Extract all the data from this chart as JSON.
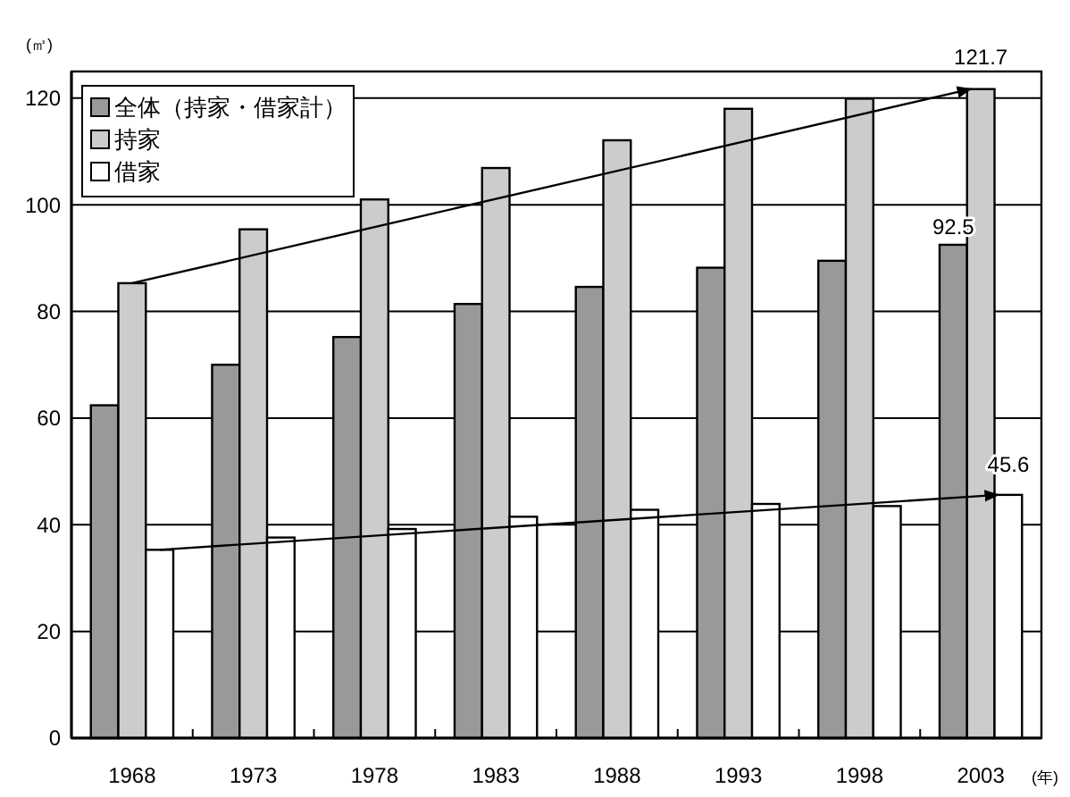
{
  "chart_data": {
    "type": "bar",
    "xlabel": "(年)",
    "ylabel": "(㎡)",
    "categories": [
      "1968",
      "1973",
      "1978",
      "1983",
      "1988",
      "1993",
      "1998",
      "2003"
    ],
    "series": [
      {
        "name": "全体（持家・借家計）",
        "color": "#999999",
        "values": [
          62.4,
          70,
          75.2,
          81.4,
          84.6,
          88.2,
          89.5,
          92.5
        ],
        "value_labels": [
          null,
          null,
          null,
          null,
          null,
          null,
          null,
          "92.5"
        ]
      },
      {
        "name": "持家",
        "color": "#cccccc",
        "values": [
          85.3,
          95.4,
          101,
          106.9,
          112.1,
          118,
          119.9,
          121.7
        ],
        "value_labels": [
          null,
          null,
          null,
          null,
          null,
          null,
          null,
          "121.7"
        ]
      },
      {
        "name": "借家",
        "color": "#ffffff",
        "values": [
          35.3,
          37.6,
          39.2,
          41.5,
          42.8,
          43.9,
          43.5,
          45.6
        ],
        "value_labels": [
          null,
          null,
          null,
          null,
          null,
          null,
          null,
          "45.6"
        ]
      }
    ],
    "ylim": [
      0,
      125
    ],
    "yticks": [
      0,
      20,
      40,
      60,
      80,
      100,
      120
    ],
    "grid": "y",
    "legend": "top left"
  }
}
